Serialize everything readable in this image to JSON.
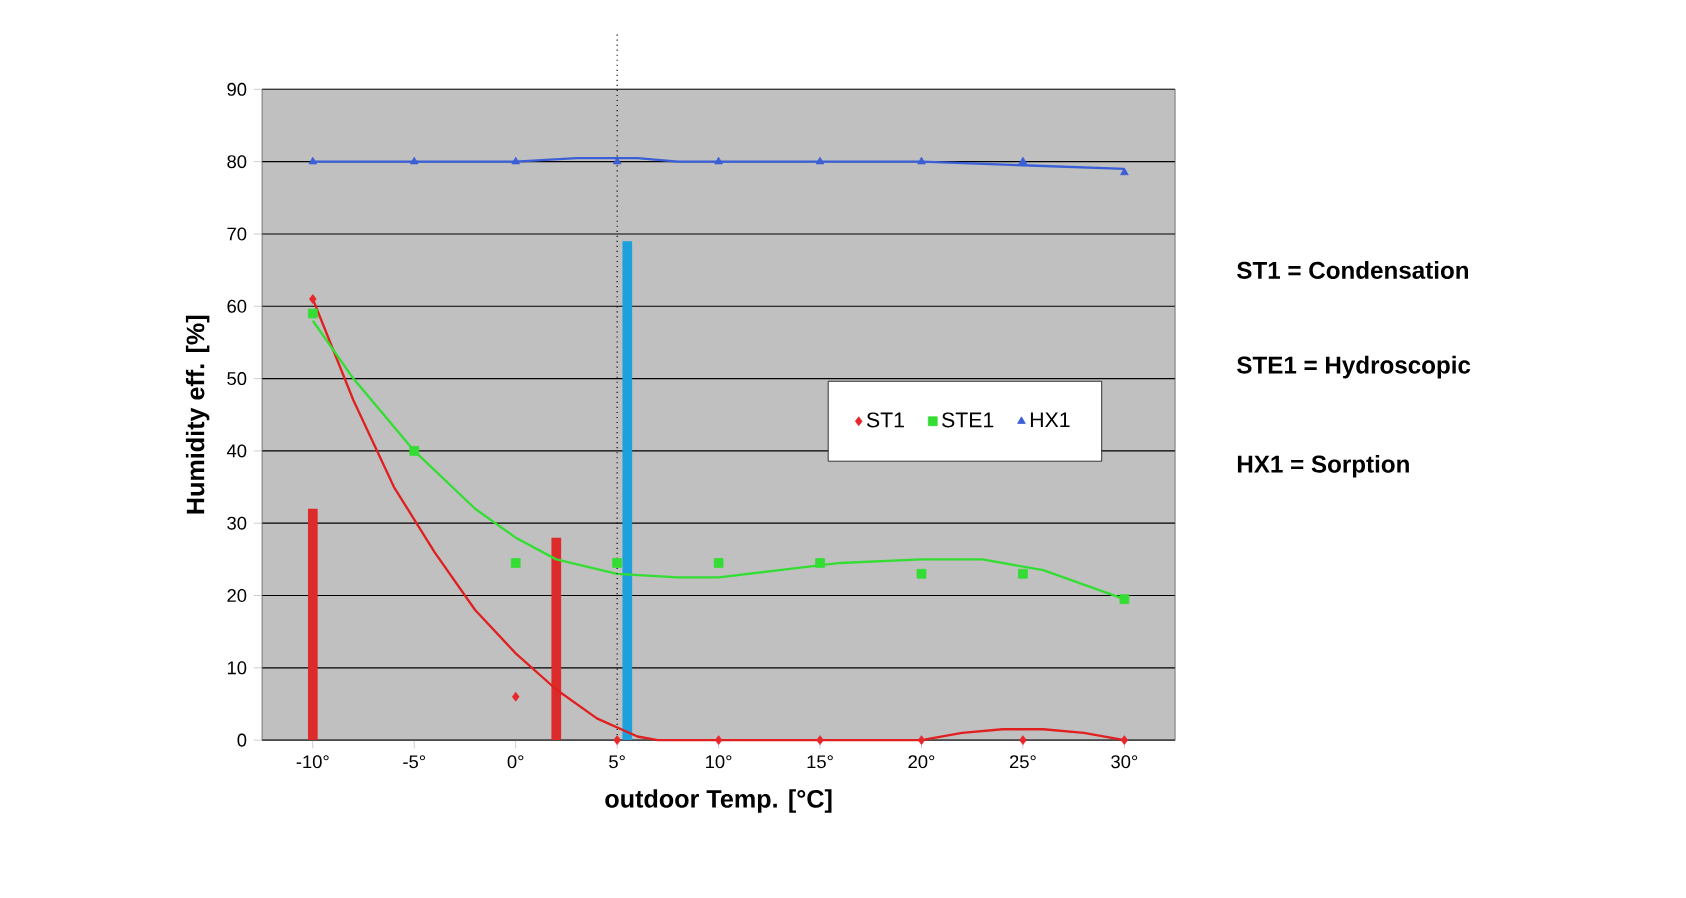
{
  "chart_data": {
    "type": "scatter",
    "xlabel": "outdoor Temp. [°C]",
    "ylabel": "Humidity eff.  [%]",
    "annotations": [
      "ST1  =  Condensation",
      "STE1 = Hydroscopic",
      "HX1 =   Sorption"
    ],
    "xlim": [
      -12.5,
      32.5
    ],
    "ylim": [
      0,
      90
    ],
    "xticks": [
      {
        "value": -10,
        "label": "-10°"
      },
      {
        "value": -5,
        "label": "-5°"
      },
      {
        "value": 0,
        "label": "0°"
      },
      {
        "value": 5,
        "label": "5°"
      },
      {
        "value": 10,
        "label": "10°"
      },
      {
        "value": 15,
        "label": "15°"
      },
      {
        "value": 20,
        "label": "20°"
      },
      {
        "value": 25,
        "label": "25°"
      },
      {
        "value": 30,
        "label": "30°"
      }
    ],
    "yticks": [
      0,
      10,
      20,
      30,
      40,
      50,
      60,
      70,
      80,
      90
    ],
    "grid": "y",
    "legend": "right",
    "ref_lines": [
      {
        "axis": "x",
        "value": 5,
        "color": "#000000",
        "line_style": "dotted"
      }
    ],
    "series": [
      {
        "type": "bar",
        "color": "#dd2a2a",
        "x": [
          -10,
          2
        ],
        "values": [
          32,
          28
        ]
      },
      {
        "type": "bar",
        "color": "#1ea0dc",
        "x": [
          5.5
        ],
        "values": [
          69
        ]
      },
      {
        "type": "line",
        "color": "#e02020",
        "x": [
          -10,
          -8,
          -6,
          -4,
          -2,
          0,
          2,
          4,
          6,
          7,
          20,
          22,
          24,
          26,
          28,
          30
        ],
        "values": [
          61,
          47,
          35,
          26,
          18,
          12,
          7,
          3,
          0.5,
          0,
          0,
          1,
          1.5,
          1.5,
          1,
          0
        ]
      },
      {
        "type": "line",
        "color": "#33dd33",
        "x": [
          -10,
          -8,
          -5,
          -2,
          0,
          2,
          5,
          8,
          10,
          13,
          16,
          20,
          23,
          26,
          28,
          30
        ],
        "values": [
          58,
          50,
          40,
          32,
          28,
          25,
          23,
          22.5,
          22.5,
          23.5,
          24.5,
          25,
          25,
          23.5,
          21.5,
          19.5
        ]
      },
      {
        "type": "line",
        "color": "#3a5fd6",
        "x": [
          -10,
          0,
          3,
          6,
          8,
          20,
          25,
          30
        ],
        "values": [
          80,
          80,
          80.5,
          80.5,
          80,
          80,
          79.5,
          79
        ]
      },
      {
        "name": "ST1",
        "color": "#e8262b",
        "marker": "diamond",
        "x": [
          -10,
          0,
          5,
          10,
          15,
          20,
          25,
          30
        ],
        "values": [
          61,
          6,
          0,
          0,
          0,
          0,
          0,
          0
        ]
      },
      {
        "name": "STE1",
        "color": "#33dd33",
        "marker": "square",
        "x": [
          -10,
          -5,
          0,
          5,
          10,
          15,
          20,
          25,
          30
        ],
        "values": [
          59,
          40,
          24.5,
          24.5,
          24.5,
          24.5,
          23,
          23,
          19.5
        ]
      },
      {
        "name": "HX1",
        "color": "#3a5fd6",
        "marker": "triangle",
        "x": [
          -10,
          -5,
          0,
          5,
          10,
          15,
          20,
          25,
          30
        ],
        "values": [
          80,
          80,
          80,
          80,
          80,
          80,
          80,
          80,
          78.5
        ]
      }
    ]
  }
}
